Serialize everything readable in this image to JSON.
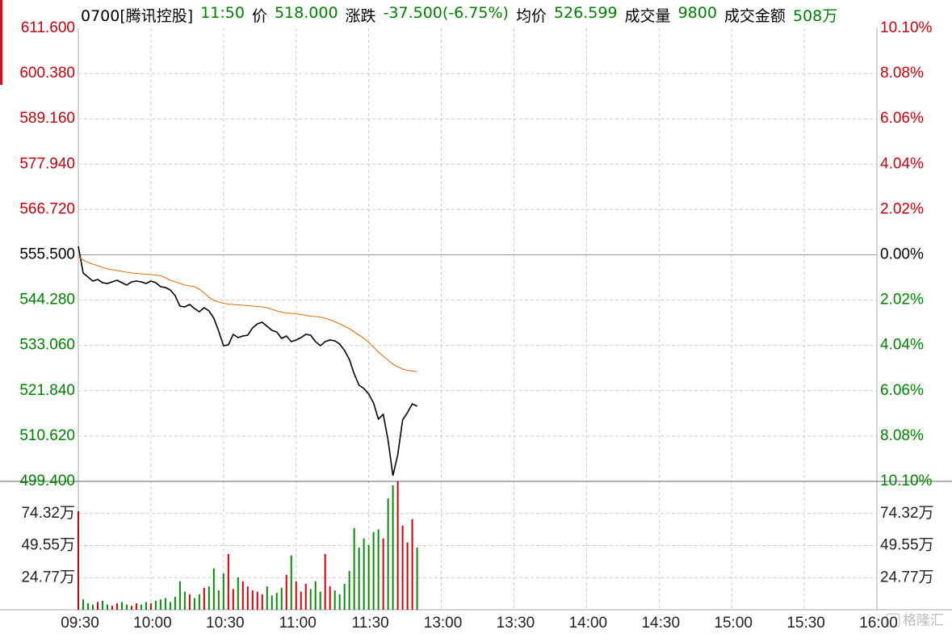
{
  "header": {
    "code": "0700[腾讯控股]",
    "time": "11:50",
    "price_label": "价",
    "price": "518.000",
    "change_label": "涨跌",
    "change": "-37.500(-6.75%)",
    "avg_label": "均价",
    "avg": "526.599",
    "volume_label": "成交量",
    "volume": "9800",
    "amount_label": "成交金额",
    "amount": "508万"
  },
  "watermark": "格隆汇",
  "chart_data": [
    {
      "type": "line",
      "x": [
        "09:30",
        "09:32",
        "09:34",
        "09:36",
        "09:38",
        "09:40",
        "09:42",
        "09:44",
        "09:46",
        "09:48",
        "09:50",
        "09:52",
        "09:54",
        "09:56",
        "09:58",
        "10:00",
        "10:02",
        "10:04",
        "10:06",
        "10:08",
        "10:10",
        "10:12",
        "10:14",
        "10:16",
        "10:18",
        "10:20",
        "10:22",
        "10:24",
        "10:26",
        "10:28",
        "10:30",
        "10:32",
        "10:34",
        "10:36",
        "10:38",
        "10:40",
        "10:42",
        "10:44",
        "10:46",
        "10:48",
        "10:50",
        "10:52",
        "10:54",
        "10:56",
        "10:58",
        "11:00",
        "11:02",
        "11:04",
        "11:06",
        "11:08",
        "11:10",
        "11:12",
        "11:14",
        "11:16",
        "11:18",
        "11:20",
        "11:22",
        "11:24",
        "11:26",
        "11:28",
        "11:30",
        "11:32",
        "11:34",
        "11:36",
        "11:38",
        "11:40",
        "11:42",
        "11:44",
        "11:46",
        "11:48",
        "11:50"
      ],
      "series": [
        {
          "name": "价",
          "color": "#000000",
          "values": [
            557.6,
            551.0,
            550.0,
            549.0,
            549.4,
            548.6,
            548.4,
            548.8,
            549.2,
            548.6,
            548.0,
            548.8,
            549.0,
            548.8,
            548.4,
            549.0,
            548.6,
            547.6,
            547.4,
            546.8,
            545.4,
            542.8,
            542.6,
            543.2,
            542.2,
            541.4,
            542.4,
            541.6,
            539.8,
            536.6,
            533.0,
            533.2,
            535.8,
            535.0,
            535.4,
            535.6,
            537.4,
            538.4,
            538.8,
            537.8,
            536.8,
            536.4,
            534.8,
            535.4,
            534.0,
            534.4,
            535.0,
            535.8,
            535.6,
            534.0,
            533.0,
            534.0,
            534.4,
            534.2,
            533.4,
            531.8,
            529.6,
            526.0,
            523.2,
            522.4,
            521.0,
            518.8,
            514.8,
            516.0,
            509.6,
            500.8,
            506.0,
            514.6,
            516.4,
            518.6,
            518.0
          ]
        },
        {
          "name": "均价",
          "color": "#e07010",
          "values": [
            555.0,
            554.2,
            553.6,
            553.2,
            552.8,
            552.4,
            552.0,
            551.8,
            551.6,
            551.4,
            551.2,
            551.0,
            550.9,
            550.8,
            550.7,
            550.6,
            550.5,
            550.3,
            549.8,
            549.2,
            548.8,
            548.4,
            548.0,
            547.8,
            547.6,
            547.0,
            546.0,
            545.0,
            544.2,
            543.8,
            543.5,
            543.3,
            543.2,
            543.1,
            543.0,
            542.9,
            542.8,
            542.7,
            542.6,
            542.4,
            542.0,
            541.6,
            541.3,
            541.1,
            541.0,
            540.9,
            540.7,
            540.5,
            540.3,
            540.2,
            540.1,
            539.8,
            539.4,
            538.9,
            538.4,
            537.8,
            537.2,
            536.4,
            535.6,
            534.8,
            533.8,
            532.6,
            531.4,
            530.4,
            529.4,
            528.4,
            527.8,
            527.2,
            526.9,
            526.7,
            526.599
          ]
        }
      ],
      "xlim": [
        "09:30",
        "16:00"
      ],
      "xticks": [
        "09:30",
        "10:00",
        "10:30",
        "11:00",
        "11:30",
        "13:00",
        "13:30",
        "14:00",
        "14:30",
        "15:00",
        "15:30",
        "16:00"
      ],
      "ylim": [
        499.4,
        611.6
      ],
      "yticks": [
        {
          "value": 611.6,
          "label": "611.600"
        },
        {
          "value": 600.38,
          "label": "600.380"
        },
        {
          "value": 589.16,
          "label": "589.160"
        },
        {
          "value": 577.94,
          "label": "577.940"
        },
        {
          "value": 566.72,
          "label": "566.720"
        },
        {
          "value": 555.5,
          "label": "555.500"
        },
        {
          "value": 544.28,
          "label": "544.280"
        },
        {
          "value": 533.06,
          "label": "533.060"
        },
        {
          "value": 521.84,
          "label": "521.840"
        },
        {
          "value": 510.62,
          "label": "510.620"
        },
        {
          "value": 499.4,
          "label": "499.400"
        }
      ],
      "y2lim": [
        -10.1,
        10.1
      ],
      "y2ticks": [
        {
          "value": 10.1,
          "label": "10.10%"
        },
        {
          "value": 8.08,
          "label": "8.08%"
        },
        {
          "value": 6.06,
          "label": "6.06%"
        },
        {
          "value": 4.04,
          "label": "4.04%"
        },
        {
          "value": 2.02,
          "label": "2.02%"
        },
        {
          "value": 0,
          "label": "0.00%"
        },
        {
          "value": -2.02,
          "label": "2.02%"
        },
        {
          "value": -4.04,
          "label": "4.04%"
        },
        {
          "value": -6.06,
          "label": "6.06%"
        },
        {
          "value": -8.08,
          "label": "8.08%"
        },
        {
          "value": -10.1,
          "label": "10.10%"
        }
      ],
      "base": 555.5,
      "up_color": "#c8000a",
      "down_color": "#008000",
      "flat_color": "#000000",
      "grid": true
    },
    {
      "type": "bar",
      "values": [
        76,
        8,
        5,
        4,
        6,
        7,
        4,
        3,
        5,
        6,
        4,
        3,
        5,
        4,
        6,
        5,
        7,
        8,
        9,
        6,
        10,
        22,
        14,
        12,
        9,
        12,
        17,
        18,
        32,
        15,
        28,
        43,
        16,
        25,
        22,
        18,
        15,
        14,
        12,
        18,
        11,
        13,
        17,
        27,
        42,
        22,
        14,
        20,
        16,
        22,
        14,
        43,
        18,
        15,
        12,
        20,
        30,
        63,
        48,
        55,
        50,
        60,
        62,
        55,
        86,
        96,
        99,
        65,
        52,
        70,
        48
      ],
      "ylim": [
        0,
        99.09
      ],
      "yticks": [
        {
          "value": 74.32,
          "label": "74.32万"
        },
        {
          "value": 49.55,
          "label": "49.55万"
        },
        {
          "value": 24.77,
          "label": "24.77万"
        }
      ],
      "up_color": "#d0000a",
      "down_color": "#0a8a0a",
      "grid": true
    }
  ]
}
